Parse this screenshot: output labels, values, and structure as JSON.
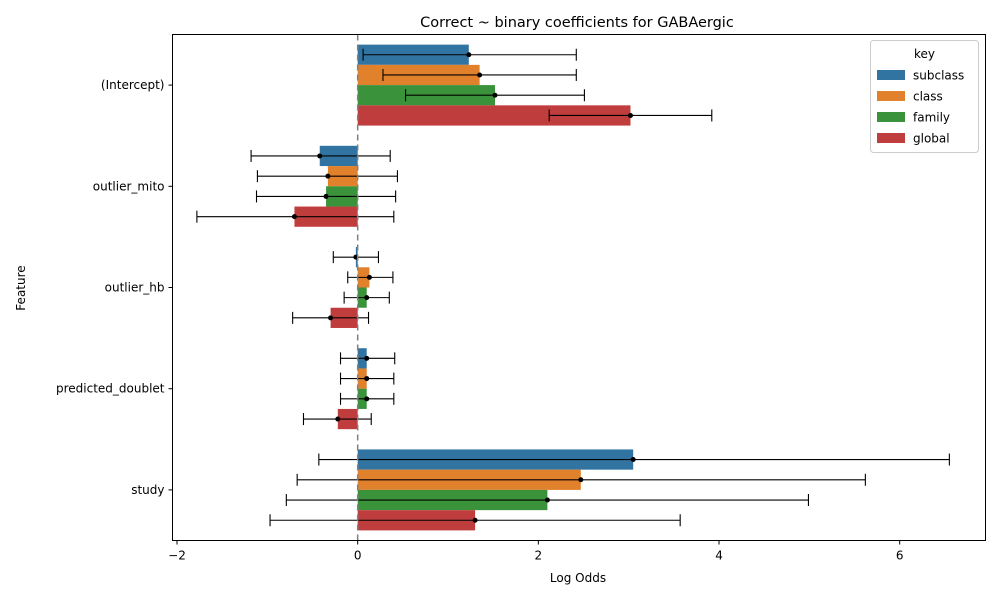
{
  "chart_data": {
    "type": "bar",
    "orientation": "horizontal",
    "title": "Correct ~ binary coefficients for GABAergic",
    "xlabel": "Log Odds",
    "ylabel": "Feature",
    "xlim": [
      -2.05,
      6.95
    ],
    "xticks": [
      -2,
      0,
      2,
      4,
      6
    ],
    "xtick_labels": [
      "−2",
      "0",
      "2",
      "4",
      "6"
    ],
    "categories": [
      "(Intercept)",
      "outlier_mito",
      "outlier_hb",
      "predicted_doublet",
      "study"
    ],
    "grid": false,
    "reference_line": 0,
    "legend": {
      "title": "key",
      "position": "top-right"
    },
    "series": [
      {
        "name": "subclass",
        "color": "#3274a1",
        "values": [
          1.23,
          -0.42,
          -0.02,
          0.1,
          3.05
        ],
        "error_low": [
          0.06,
          -1.18,
          -0.27,
          -0.19,
          -0.43
        ],
        "error_high": [
          2.42,
          0.36,
          0.23,
          0.41,
          6.55
        ]
      },
      {
        "name": "class",
        "color": "#e1812c",
        "values": [
          1.35,
          -0.33,
          0.13,
          0.1,
          2.47
        ],
        "error_low": [
          0.28,
          -1.11,
          -0.11,
          -0.19,
          -0.67
        ],
        "error_high": [
          2.42,
          0.44,
          0.39,
          0.4,
          5.62
        ]
      },
      {
        "name": "family",
        "color": "#3a923a",
        "values": [
          1.52,
          -0.35,
          0.1,
          0.1,
          2.1
        ],
        "error_low": [
          0.53,
          -1.12,
          -0.15,
          -0.19,
          -0.79
        ],
        "error_high": [
          2.51,
          0.42,
          0.35,
          0.4,
          4.99
        ]
      },
      {
        "name": "global",
        "color": "#c03d3e",
        "values": [
          3.02,
          -0.7,
          -0.3,
          -0.22,
          1.3
        ],
        "error_low": [
          2.12,
          -1.78,
          -0.72,
          -0.6,
          -0.97
        ],
        "error_high": [
          3.92,
          0.4,
          0.12,
          0.15,
          3.57
        ]
      }
    ]
  }
}
